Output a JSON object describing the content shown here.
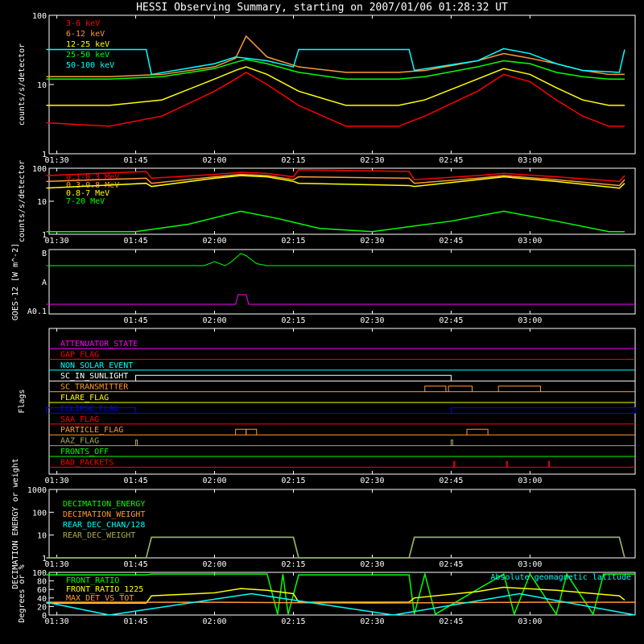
{
  "title": "HESSI Observing Summary, starting on 2007/01/06 01:28:32 UT",
  "colors": {
    "background": "#000000",
    "axis": "#ffffff",
    "red": "#ff0000",
    "orange": "#ff9933",
    "yellow": "#ffff00",
    "green": "#00ff00",
    "cyan": "#00ffff",
    "magenta": "#ff00ff",
    "blue": "#0000ff",
    "olive": "#aaaa55",
    "lightgreen": "#55ff55"
  },
  "chart_data": [
    {
      "id": "low-energy",
      "type": "line",
      "ylabel": "counts/s/detector",
      "yscale": "log",
      "ylim": [
        1,
        100
      ],
      "ytick_labels": [
        "1",
        "10",
        "100"
      ],
      "xlim": [
        "01:28:32",
        "03:20:00"
      ],
      "xtick_labels": [
        "01:30",
        "01:45",
        "02:00",
        "02:15",
        "02:30",
        "02:45",
        "03:00"
      ],
      "series": [
        {
          "name": "3-6 keV",
          "color": "#ff0000",
          "x": [
            "01:28",
            "01:40",
            "01:50",
            "02:00",
            "02:04",
            "02:06",
            "02:10",
            "02:16",
            "02:25",
            "02:35",
            "02:40",
            "02:50",
            "02:55",
            "03:00",
            "03:05",
            "03:10",
            "03:15",
            "03:18"
          ],
          "values": [
            2.8,
            2.5,
            3.5,
            8,
            12,
            15,
            10,
            5,
            2.5,
            2.5,
            3.5,
            8,
            14,
            11,
            6,
            3.5,
            2.5,
            2.5
          ]
        },
        {
          "name": "6-12 keV",
          "color": "#ff9933",
          "x": [
            "01:28",
            "01:40",
            "01:50",
            "02:00",
            "02:04",
            "02:06",
            "02:10",
            "02:16",
            "02:25",
            "02:35",
            "02:40",
            "02:50",
            "02:55",
            "03:00",
            "03:05",
            "03:10",
            "03:15",
            "03:18"
          ],
          "values": [
            13,
            13,
            14,
            18,
            24,
            50,
            25,
            18,
            15,
            15,
            16,
            22,
            28,
            24,
            20,
            16,
            14,
            14
          ]
        },
        {
          "name": "12-25 keV",
          "color": "#ffff00",
          "x": [
            "01:28",
            "01:40",
            "01:50",
            "02:00",
            "02:04",
            "02:06",
            "02:10",
            "02:16",
            "02:25",
            "02:35",
            "02:40",
            "02:50",
            "02:55",
            "03:00",
            "03:05",
            "03:10",
            "03:15",
            "03:18"
          ],
          "values": [
            5,
            5,
            6,
            12,
            16,
            18,
            14,
            8,
            5,
            5,
            6,
            12,
            17,
            14,
            9,
            6,
            5,
            5
          ]
        },
        {
          "name": "25-50 keV",
          "color": "#00ff00",
          "x": [
            "01:28",
            "01:40",
            "01:50",
            "02:00",
            "02:04",
            "02:06",
            "02:10",
            "02:16",
            "02:25",
            "02:35",
            "02:40",
            "02:50",
            "02:55",
            "03:00",
            "03:05",
            "03:10",
            "03:15",
            "03:18"
          ],
          "values": [
            12,
            12,
            13,
            17,
            21,
            23,
            20,
            15,
            12,
            12,
            13,
            18,
            22,
            20,
            15,
            13,
            12,
            12
          ]
        },
        {
          "name": "50-100 keV",
          "color": "#00ffff",
          "x": [
            "01:28",
            "01:40",
            "01:47",
            "01:48",
            "02:00",
            "02:04",
            "02:10",
            "02:15",
            "02:16",
            "02:25",
            "02:35",
            "02:37",
            "02:38",
            "02:50",
            "02:55",
            "03:00",
            "03:05",
            "03:10",
            "03:17",
            "03:18"
          ],
          "values": [
            32,
            32,
            32,
            14,
            20,
            25,
            22,
            18,
            32,
            32,
            32,
            32,
            16,
            22,
            33,
            28,
            20,
            16,
            15,
            32
          ]
        }
      ]
    },
    {
      "id": "high-energy",
      "type": "line",
      "ylabel": "counts/s/detector",
      "yscale": "log",
      "ylim": [
        1,
        100
      ],
      "ytick_labels": [
        "1",
        "10",
        "100"
      ],
      "xlim": [
        "01:28:32",
        "03:20:00"
      ],
      "xtick_labels": [
        "01:30",
        "01:45",
        "02:00",
        "02:15",
        "02:30",
        "02:45",
        "03:00"
      ],
      "series": [
        {
          "name": "0.1-0.3 MeV",
          "color": "#ff0000",
          "x": [
            "01:28",
            "01:47",
            "01:48",
            "02:00",
            "02:05",
            "02:10",
            "02:15",
            "02:16",
            "02:37",
            "02:38",
            "02:50",
            "02:55",
            "03:05",
            "03:17",
            "03:18"
          ],
          "values": [
            60,
            80,
            50,
            65,
            75,
            70,
            55,
            90,
            80,
            45,
            60,
            70,
            55,
            40,
            60
          ]
        },
        {
          "name": "0.3-0.8 MeV",
          "color": "#ff9933",
          "x": [
            "01:28",
            "01:47",
            "01:48",
            "02:00",
            "02:05",
            "02:10",
            "02:15",
            "02:16",
            "02:37",
            "02:38",
            "02:50",
            "02:55",
            "03:05",
            "03:17",
            "03:18"
          ],
          "values": [
            40,
            50,
            35,
            55,
            65,
            60,
            45,
            55,
            50,
            35,
            50,
            60,
            45,
            30,
            45
          ]
        },
        {
          "name": "0.8-7 MeV",
          "color": "#ffff00",
          "x": [
            "01:28",
            "01:47",
            "01:48",
            "02:00",
            "02:05",
            "02:10",
            "02:15",
            "02:16",
            "02:37",
            "02:38",
            "02:50",
            "02:55",
            "03:05",
            "03:17",
            "03:18"
          ],
          "values": [
            25,
            35,
            28,
            50,
            60,
            55,
            40,
            35,
            30,
            28,
            45,
            55,
            40,
            25,
            35
          ]
        },
        {
          "name": "7-20 MeV",
          "color": "#00ff00",
          "x": [
            "01:28",
            "01:45",
            "01:55",
            "02:05",
            "02:12",
            "02:20",
            "02:30",
            "02:45",
            "02:55",
            "03:05",
            "03:15",
            "03:18"
          ],
          "values": [
            1.2,
            1.2,
            2,
            5,
            3,
            1.5,
            1.2,
            2.5,
            5,
            2.5,
            1.2,
            1.2
          ]
        }
      ]
    },
    {
      "id": "goes",
      "type": "line",
      "ylabel": "GOES-12 [W m^-2]",
      "ytick_labels": [
        "B",
        "A",
        "A0.1"
      ],
      "xlim": [
        "01:28:32",
        "03:20:00"
      ],
      "xtick_labels": [
        "01:45",
        "02:00",
        "02:15",
        "02:30",
        "02:45",
        "03:00"
      ],
      "series": [
        {
          "color": "#00ff00",
          "x": [
            "01:28",
            "01:58",
            "02:00",
            "02:02",
            "02:03",
            "02:05",
            "02:06",
            "02:08",
            "02:10",
            "03:20"
          ],
          "values": [
            0.0,
            0.0,
            0.2,
            0.0,
            0.15,
            0.6,
            0.5,
            0.1,
            0.0,
            0.0
          ]
        },
        {
          "color": "#ff00ff",
          "x": [
            "01:28",
            "02:04",
            "02:04.5",
            "02:06",
            "02:06.5",
            "03:20"
          ],
          "values": [
            0.0,
            0.0,
            1.0,
            1.0,
            0.0,
            0.0
          ]
        }
      ]
    },
    {
      "id": "flags",
      "type": "line",
      "ylabel": "Flags",
      "xlim": [
        "01:28:32",
        "03:20:00"
      ],
      "xtick_labels": [
        "01:30",
        "01:45",
        "02:00",
        "02:15",
        "02:30",
        "02:45",
        "03:00"
      ],
      "series": [
        {
          "name": "ATTENUATOR_STATE",
          "color": "#ff00ff",
          "segments": []
        },
        {
          "name": "GAP_FLAG",
          "color": "#ff0000",
          "segments": []
        },
        {
          "name": "NON_SOLAR_EVENT",
          "color": "#00ffff",
          "segments": []
        },
        {
          "name": "SC_IN_SUNLIGHT",
          "color": "#ffffff",
          "segments": [
            [
              "01:45",
              "02:45"
            ]
          ]
        },
        {
          "name": "SC_TRANSMITTER",
          "color": "#ff9933",
          "segments": [
            [
              "02:40",
              "02:44"
            ],
            [
              "02:44.5",
              "02:49"
            ],
            [
              "02:54",
              "03:02"
            ]
          ]
        },
        {
          "name": "FLARE_FLAG",
          "color": "#ffff00",
          "segments": []
        },
        {
          "name": "ECLIPSE_FLAG",
          "color": "#0000ff",
          "segments": [
            [
              "01:28",
              "01:45"
            ],
            [
              "02:45",
              "03:20"
            ]
          ]
        },
        {
          "name": "SAA_FLAG",
          "color": "#ff0000",
          "segments": []
        },
        {
          "name": "PARTICLE_FLAG",
          "color": "#ff9933",
          "segments": [
            [
              "02:04",
              "02:06"
            ],
            [
              "02:06",
              "02:08"
            ],
            [
              "02:48",
              "02:52"
            ]
          ]
        },
        {
          "name": "AAZ_FLAG",
          "color": "#aaaa55",
          "segments": [
            [
              "01:45",
              "01:45.3"
            ],
            [
              "02:45",
              "02:45.3"
            ]
          ]
        },
        {
          "name": "FRONTS_OFF",
          "color": "#00ff00",
          "segments": []
        },
        {
          "name": "BAD_PACKETS",
          "color": "#ff0000",
          "segments": [
            [
              "02:45.5",
              "02:45.7"
            ],
            [
              "02:55.5",
              "02:55.7"
            ],
            [
              "03:03.5",
              "03:03.7"
            ]
          ]
        }
      ]
    },
    {
      "id": "decimation",
      "type": "line",
      "ylabel": "DECIMATION ENERGY or weight",
      "yscale": "log",
      "ylim": [
        1,
        1000
      ],
      "ytick_labels": [
        "1",
        "10",
        "100",
        "1000"
      ],
      "xlim": [
        "01:28:32",
        "03:20:00"
      ],
      "xtick_labels": [
        "01:30",
        "01:45",
        "02:00",
        "02:15",
        "02:30",
        "02:45",
        "03:00"
      ],
      "series": [
        {
          "name": "DECIMATION_ENERGY",
          "color": "#00ff00",
          "x": [],
          "values": []
        },
        {
          "name": "DECIMATION_WEIGHT",
          "color": "#ff9933",
          "x": [],
          "values": []
        },
        {
          "name": "REAR_DEC_CHAN/128",
          "color": "#00ffff",
          "x": [
            "01:28",
            "01:47",
            "01:48",
            "02:15",
            "02:16",
            "02:37",
            "02:38",
            "03:17",
            "03:18"
          ],
          "values": [
            1,
            1,
            8,
            8,
            1,
            1,
            8,
            8,
            1
          ]
        },
        {
          "name": "REAR_DEC_WEIGHT",
          "color": "#aaaa55",
          "x": [
            "01:28",
            "01:47",
            "01:48",
            "02:15",
            "02:16",
            "02:37",
            "02:38",
            "03:17",
            "03:18"
          ],
          "values": [
            1,
            1,
            8,
            8,
            1,
            1,
            8,
            8,
            1
          ]
        }
      ]
    },
    {
      "id": "ratios",
      "type": "line",
      "ylabel": "Degrees or %",
      "ylim": [
        0,
        100
      ],
      "ytick_labels": [
        "0",
        "20",
        "40",
        "60",
        "80",
        "100"
      ],
      "xlim": [
        "01:28:32",
        "03:20:00"
      ],
      "xtick_labels": [
        "01:30",
        "01:45",
        "02:00",
        "02:15",
        "02:30",
        "02:45",
        "03:00"
      ],
      "annotation": "Absolute geomagnetic latitude",
      "series": [
        {
          "name": "FRONT_RATIO",
          "color": "#00ff00",
          "x": [
            "01:28",
            "01:47",
            "01:48",
            "02:10",
            "02:12",
            "02:13",
            "02:14",
            "02:16",
            "02:37",
            "02:38",
            "02:40",
            "02:42",
            "02:55",
            "02:57",
            "03:00",
            "03:05",
            "03:07",
            "03:12",
            "03:14",
            "03:20"
          ],
          "values": [
            94,
            94,
            96,
            96,
            2,
            96,
            2,
            94,
            94,
            2,
            96,
            2,
            96,
            2,
            96,
            2,
            96,
            2,
            96,
            96
          ]
        },
        {
          "name": "FRONT_RATIO_1225",
          "color": "#ffff00",
          "x": [
            "01:28",
            "01:47",
            "01:48",
            "02:00",
            "02:05",
            "02:10",
            "02:15",
            "02:16",
            "02:37",
            "02:38",
            "02:50",
            "02:55",
            "03:05",
            "03:17",
            "03:18"
          ],
          "values": [
            28,
            28,
            45,
            52,
            62,
            58,
            50,
            30,
            30,
            40,
            55,
            65,
            58,
            45,
            35
          ]
        },
        {
          "name": "MAX_DET_VS_TOT",
          "color": "#ff9933",
          "x": [
            "01:28",
            "02:00",
            "02:30",
            "03:00",
            "03:20"
          ],
          "values": [
            30,
            30,
            28,
            30,
            30
          ]
        },
        {
          "name": "Absolute geomagnetic latitude",
          "color": "#00ffff",
          "x": [
            "01:28",
            "01:40",
            "02:07",
            "02:34",
            "02:58",
            "03:20"
          ],
          "values": [
            30,
            0,
            50,
            0,
            50,
            0
          ]
        }
      ]
    }
  ]
}
